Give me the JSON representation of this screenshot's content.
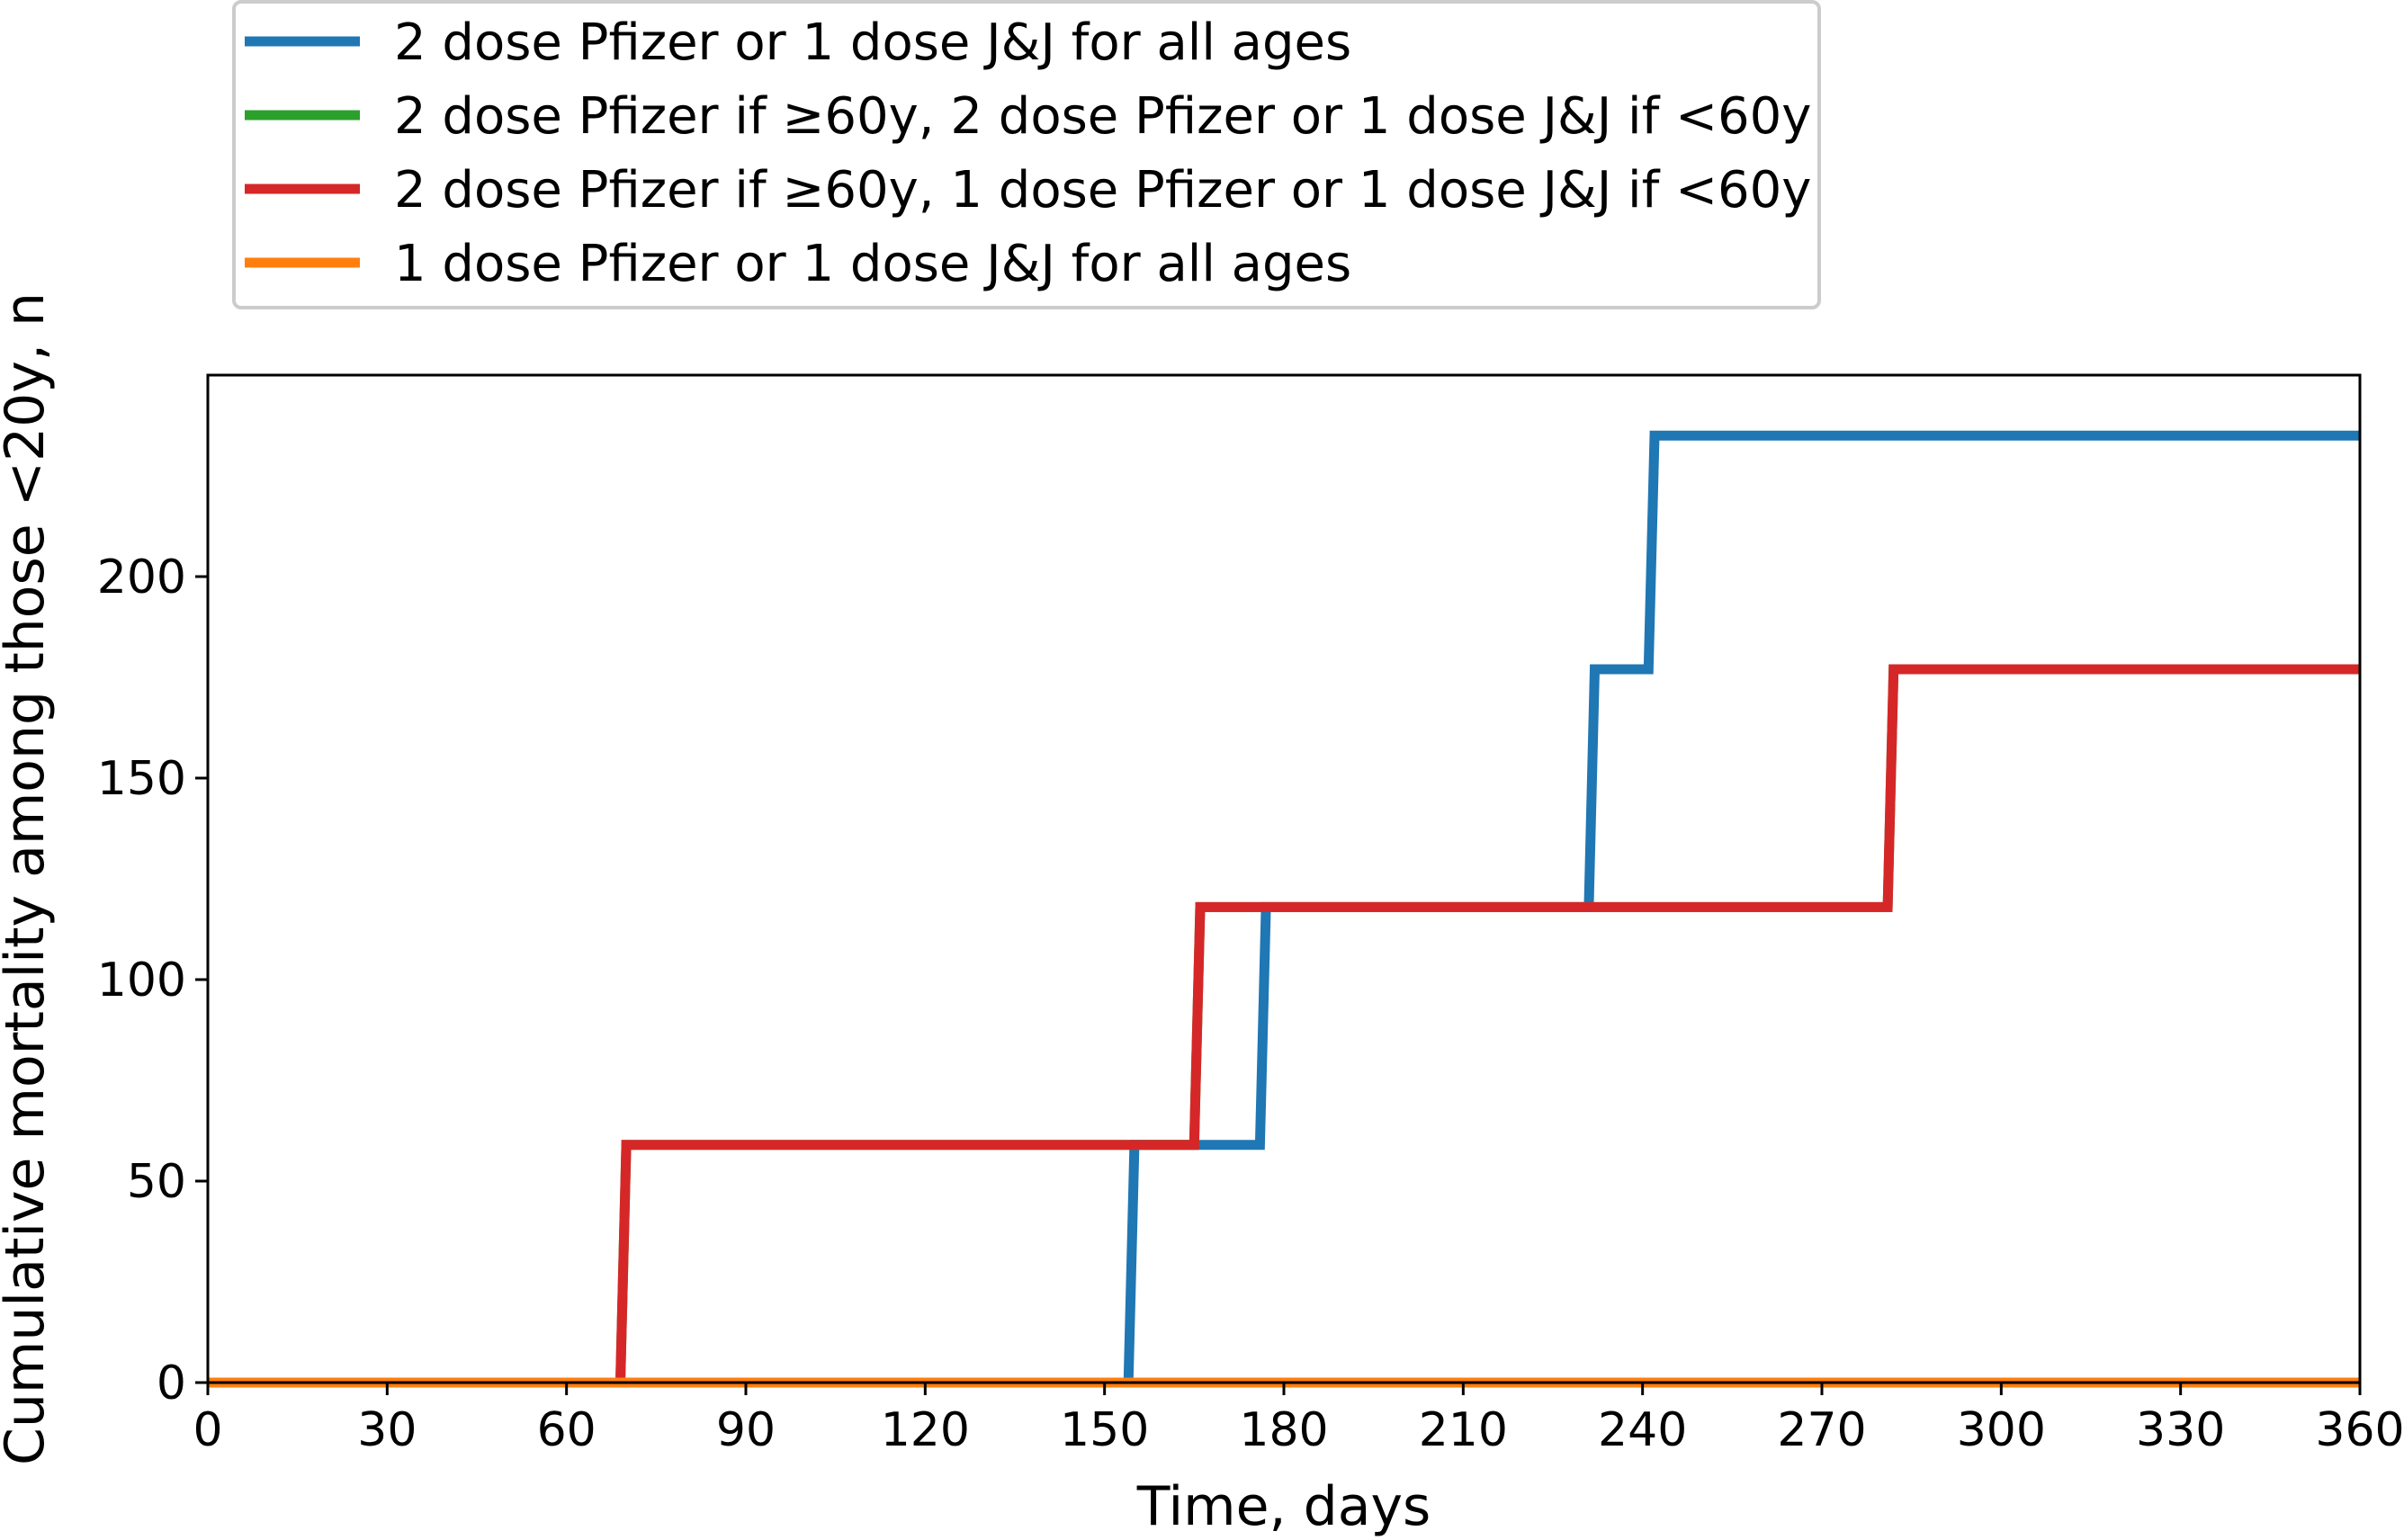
{
  "chart_data": {
    "type": "line",
    "step": true,
    "title": "",
    "xlabel": "Time, days",
    "ylabel": "Cumulative mortality among those <20y, n",
    "xlim": [
      0,
      360
    ],
    "ylim": [
      0,
      250
    ],
    "x_ticks": [
      0,
      30,
      60,
      90,
      120,
      150,
      180,
      210,
      240,
      270,
      300,
      330,
      360
    ],
    "y_ticks": [
      0,
      50,
      100,
      150,
      200
    ],
    "grid": false,
    "legend_position": "top-left, above plot",
    "series": [
      {
        "name": "2 dose Pfizer or 1 dose J&J for all ages",
        "color": "#1f77b4",
        "points": [
          [
            0,
            0
          ],
          [
            154,
            0
          ],
          [
            155,
            59
          ],
          [
            176,
            59
          ],
          [
            177,
            118
          ],
          [
            231,
            118
          ],
          [
            232,
            177
          ],
          [
            241,
            177
          ],
          [
            242,
            235
          ],
          [
            360,
            235
          ]
        ]
      },
      {
        "name": "2 dose Pfizer if ≥60y, 2 dose Pfizer or 1 dose J&J if <60y",
        "color": "#2ca02c",
        "points": [
          [
            0,
            0
          ],
          [
            69,
            0
          ],
          [
            70,
            59
          ],
          [
            165,
            59
          ],
          [
            166,
            118
          ],
          [
            281,
            118
          ],
          [
            282,
            177
          ],
          [
            360,
            177
          ]
        ]
      },
      {
        "name": "2 dose Pfizer if ≥60y, 1 dose Pfizer or 1 dose J&J if <60y",
        "color": "#d62728",
        "points": [
          [
            0,
            0
          ],
          [
            69,
            0
          ],
          [
            70,
            59
          ],
          [
            165,
            59
          ],
          [
            166,
            118
          ],
          [
            281,
            118
          ],
          [
            282,
            177
          ],
          [
            360,
            177
          ]
        ]
      },
      {
        "name": "1 dose Pfizer or 1 dose J&J for all ages",
        "color": "#ff7f0e",
        "points": [
          [
            0,
            0
          ],
          [
            360,
            0
          ]
        ]
      }
    ]
  }
}
